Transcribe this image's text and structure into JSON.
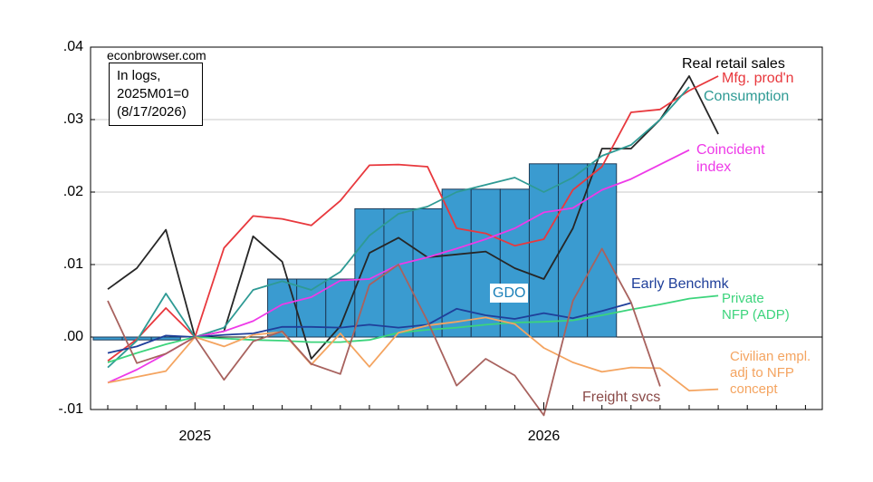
{
  "chart_data": {
    "type": "line",
    "source": "econbrowser.com",
    "note": [
      "In logs,",
      "2025M01=0",
      "(8/17/2026)"
    ],
    "categories": [
      null,
      null,
      null,
      "2025",
      null,
      null,
      null,
      null,
      null,
      null,
      null,
      null,
      null,
      null,
      null,
      "2026",
      null,
      null,
      null,
      null,
      null,
      null,
      null,
      null,
      null
    ],
    "ylim": [
      -0.01,
      0.04
    ],
    "yticks": [
      {
        "value": -0.01,
        "label": "-.01"
      },
      {
        "value": 0,
        "label": ".00"
      },
      {
        "value": 0.01,
        "label": ".01"
      },
      {
        "value": 0.02,
        "label": ".02"
      },
      {
        "value": 0.03,
        "label": ".03"
      },
      {
        "value": 0.04,
        "label": ".04"
      }
    ],
    "grid": true,
    "series": [
      {
        "name": "GDO",
        "type": "bar",
        "color": "#3a9bd0",
        "values": [
          -0.0004,
          -0.0004,
          -0.0004,
          0,
          0,
          0,
          0.008,
          0.008,
          0.008,
          0.0177,
          0.0177,
          0.0177,
          0.0204,
          0.0204,
          0.0204,
          0.0239,
          0.0239,
          0.0239,
          null,
          null,
          null,
          null,
          null,
          null,
          null
        ]
      },
      {
        "name": "Real retail sales",
        "color": "#262626",
        "values": [
          0.0066,
          0.0095,
          0.0148,
          0,
          0.0008,
          0.0139,
          0.0104,
          -0.003,
          0.0015,
          0.0116,
          0.0137,
          0.011,
          0.0114,
          0.0118,
          0.0095,
          0.008,
          0.015,
          0.026,
          0.026,
          0.03,
          0.036,
          0.028,
          null,
          null,
          null
        ]
      },
      {
        "name": "Mfg. prod'n",
        "color": "#e8383d",
        "values": [
          -0.0033,
          -0.0003,
          0.004,
          0,
          0.0123,
          0.0167,
          0.0163,
          0.0154,
          0.0188,
          0.0237,
          0.0238,
          0.0235,
          0.015,
          0.0143,
          0.0126,
          0.0135,
          0.0203,
          0.0235,
          0.031,
          0.0314,
          0.034,
          0.036,
          null,
          null,
          null
        ]
      },
      {
        "name": "Consumption",
        "color": "#2e9a94",
        "values": [
          -0.0042,
          -0.0005,
          0.006,
          0,
          0.0013,
          0.0065,
          0.0077,
          0.0065,
          0.009,
          0.014,
          0.017,
          0.018,
          0.02,
          0.021,
          0.022,
          0.02,
          0.022,
          0.025,
          0.0265,
          0.03,
          0.0345,
          null,
          null,
          null,
          null
        ]
      },
      {
        "name": "Coincident\nindex",
        "color": "#ee3ae8",
        "values": [
          -0.0063,
          -0.0045,
          -0.0023,
          0,
          0.0008,
          0.0022,
          0.0045,
          0.0055,
          0.0078,
          0.008,
          0.01,
          0.011,
          0.0122,
          0.0135,
          0.015,
          0.0172,
          0.0178,
          0.0203,
          0.0218,
          0.0238,
          0.0258,
          null,
          null,
          null,
          null
        ]
      },
      {
        "name": "Early Benchmk",
        "color": "#1f3f9a",
        "values": [
          -0.0022,
          -0.0013,
          0.0002,
          0,
          0.0003,
          0.0005,
          0.0014,
          0.0014,
          0.0013,
          0.0017,
          0.0013,
          0.0017,
          0.0039,
          0.003,
          0.0025,
          0.0033,
          0.0026,
          0.0036,
          0.0047,
          null,
          null,
          null,
          null,
          null,
          null
        ]
      },
      {
        "name": "Private\nNFP (ADP)",
        "color": "#3cd47c",
        "values": [
          -0.0035,
          -0.0022,
          -0.001,
          0,
          -0.0002,
          -0.0004,
          -0.0005,
          -0.0007,
          -0.0007,
          -0.0004,
          0.0006,
          0.001,
          0.0013,
          0.0017,
          0.002,
          0.0021,
          0.0023,
          0.003,
          0.0038,
          0.0045,
          0.0053,
          0.0057,
          null,
          null,
          null
        ]
      },
      {
        "name": "Civilian empl.\nadj to NFP\nconcept",
        "color": "#f4a460",
        "values": [
          -0.0063,
          -0.0055,
          -0.0047,
          0,
          -0.0013,
          0.0003,
          0.0007,
          -0.0038,
          0.0005,
          -0.0041,
          0.0006,
          0.0016,
          0.0021,
          0.0027,
          0.0018,
          -0.0015,
          -0.0035,
          -0.0048,
          -0.0042,
          -0.0043,
          -0.0074,
          -0.0072,
          null,
          null,
          null
        ]
      },
      {
        "name": "Freight svcs",
        "color": "#a8625e",
        "values": [
          0.005,
          -0.0036,
          -0.0023,
          0,
          -0.0059,
          -0.0006,
          0.0008,
          -0.0037,
          -0.0051,
          0.0072,
          0.01,
          0.0022,
          -0.0067,
          -0.003,
          -0.0053,
          -0.0108,
          0.005,
          0.0122,
          0.0048,
          -0.0068,
          null,
          null,
          null,
          null,
          null
        ]
      }
    ]
  }
}
